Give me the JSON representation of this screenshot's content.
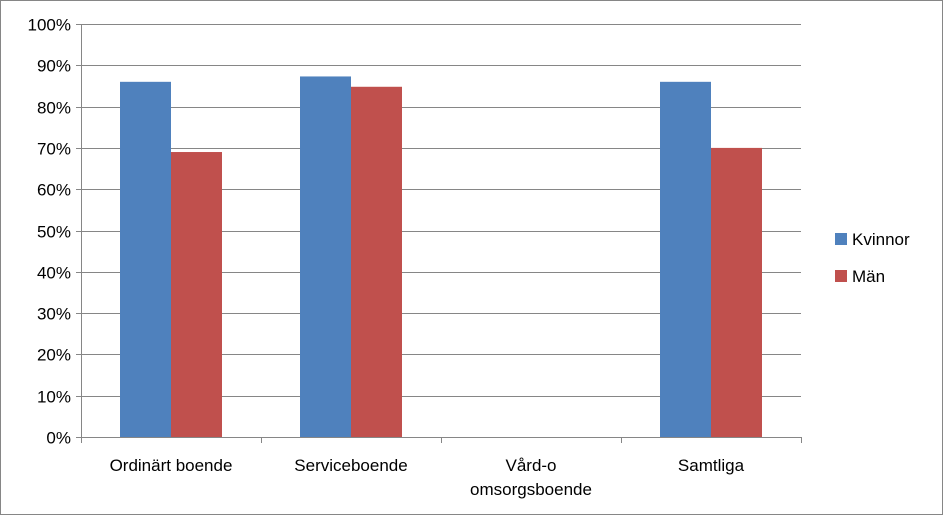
{
  "chart_data": {
    "type": "bar",
    "title": "",
    "xlabel": "",
    "ylabel": "",
    "categories": [
      [
        "Ordinärt boende"
      ],
      [
        "Serviceboende"
      ],
      [
        "Vård-o",
        "omsorgsboende"
      ],
      [
        "Samtliga"
      ]
    ],
    "series": [
      {
        "name": "Kvinnor",
        "color": "#4F81BD",
        "values": [
          86,
          87.3,
          null,
          86
        ]
      },
      {
        "name": "Män",
        "color": "#C0504D",
        "values": [
          69,
          84.8,
          null,
          70
        ]
      }
    ],
    "ylim": [
      0,
      100
    ],
    "yticks": [
      0,
      10,
      20,
      30,
      40,
      50,
      60,
      70,
      80,
      90,
      100
    ],
    "ytick_labels": [
      "0%",
      "10%",
      "20%",
      "30%",
      "40%",
      "50%",
      "60%",
      "70%",
      "80%",
      "90%",
      "100%"
    ],
    "grid": true,
    "legend_position": "right"
  }
}
